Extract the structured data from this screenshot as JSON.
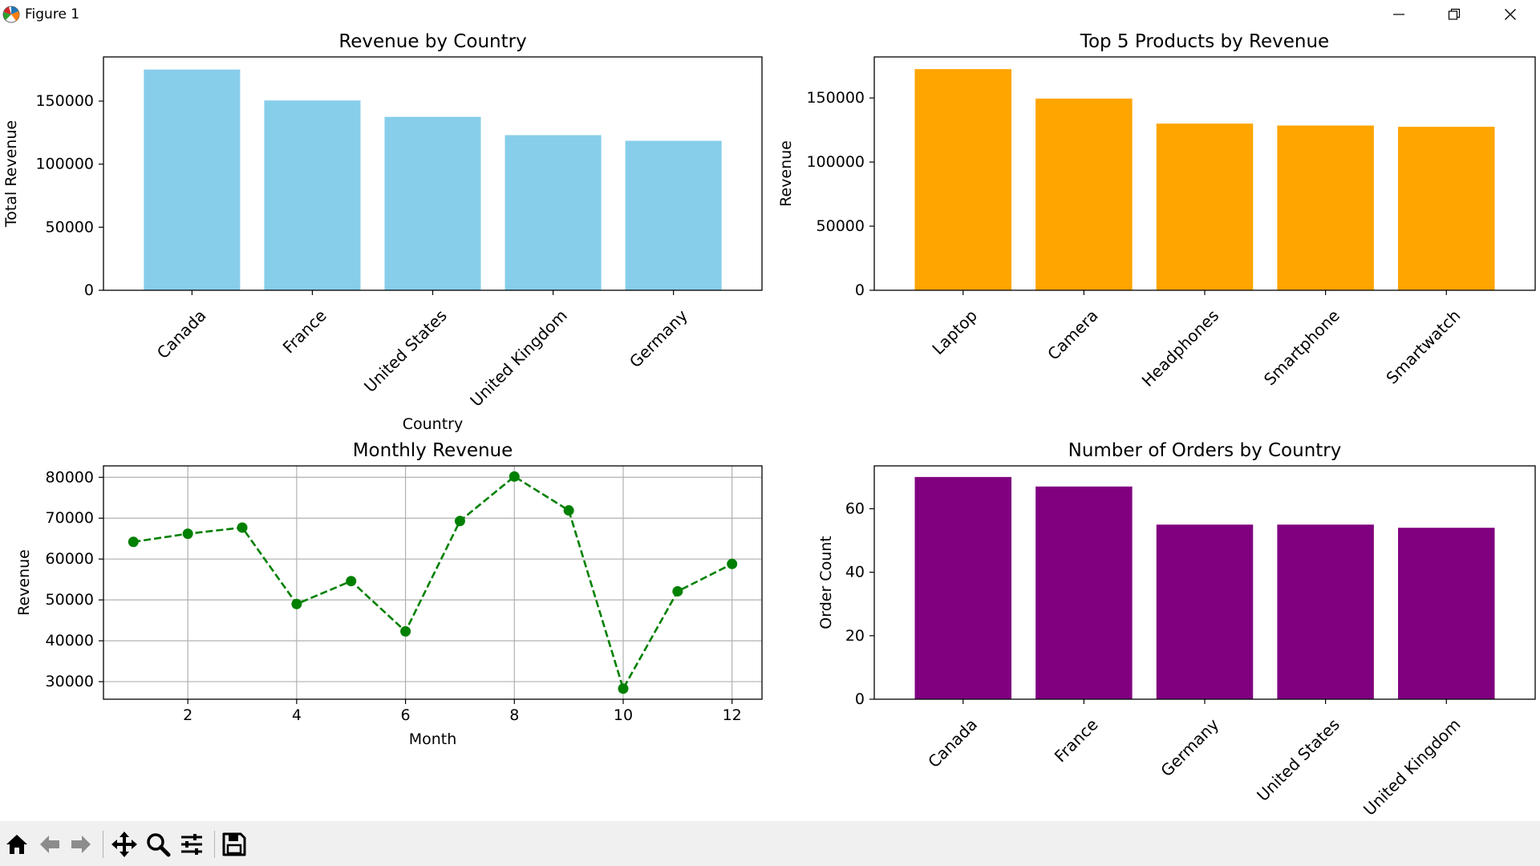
{
  "window": {
    "title": "Figure 1",
    "icons": {
      "app": "matplotlib-icon",
      "minimize": "minimize-icon",
      "maximize": "restore-icon",
      "close": "close-icon"
    }
  },
  "toolbar": {
    "tools": [
      "home-icon",
      "back-arrow-icon",
      "forward-arrow-icon",
      "pan-move-icon",
      "zoom-magnifier-icon",
      "configure-subplots-icon",
      "save-floppy-icon"
    ]
  },
  "chart_data": [
    {
      "type": "bar",
      "title": "Revenue by Country",
      "xlabel": "Country",
      "ylabel": "Total Revenue",
      "categories": [
        "Canada",
        "France",
        "United States",
        "United Kingdom",
        "Germany"
      ],
      "values": [
        175000,
        150500,
        137500,
        123000,
        118500
      ],
      "ylim": [
        0,
        185000
      ],
      "yticks": [
        0,
        50000,
        100000,
        150000
      ],
      "color": "#87CEEB",
      "rotate_labels": true,
      "grid": false
    },
    {
      "type": "bar",
      "title": "Top 5 Products by Revenue",
      "xlabel": "",
      "ylabel": "Revenue",
      "categories": [
        "Laptop",
        "Camera",
        "Headphones",
        "Smartphone",
        "Smartwatch"
      ],
      "values": [
        172500,
        149500,
        130000,
        128500,
        127500
      ],
      "ylim": [
        0,
        182000
      ],
      "yticks": [
        0,
        50000,
        100000,
        150000
      ],
      "color": "#FFA500",
      "rotate_labels": true,
      "grid": false
    },
    {
      "type": "line",
      "title": "Monthly Revenue",
      "xlabel": "Month",
      "ylabel": "Revenue",
      "x": [
        1,
        2,
        3,
        4,
        5,
        6,
        7,
        8,
        9,
        10,
        11,
        12
      ],
      "y": [
        64200,
        66200,
        67700,
        49000,
        54600,
        42300,
        69300,
        80200,
        71900,
        28300,
        52100,
        58800
      ],
      "xlim": [
        0.45,
        12.55
      ],
      "ylim": [
        25700,
        82800
      ],
      "xticks": [
        2,
        4,
        6,
        8,
        10,
        12
      ],
      "yticks": [
        30000,
        40000,
        50000,
        60000,
        70000,
        80000
      ],
      "color": "#008000",
      "line_style": "dashed",
      "marker": "circle",
      "grid": true
    },
    {
      "type": "bar",
      "title": "Number of Orders by Country",
      "xlabel": "",
      "ylabel": "Order Count",
      "categories": [
        "Canada",
        "France",
        "Germany",
        "United States",
        "United Kingdom"
      ],
      "values": [
        70,
        67,
        55,
        55,
        54
      ],
      "ylim": [
        0,
        73.5
      ],
      "yticks": [
        0,
        20,
        40,
        60
      ],
      "color": "#800080",
      "rotate_labels": true,
      "grid": false
    }
  ]
}
